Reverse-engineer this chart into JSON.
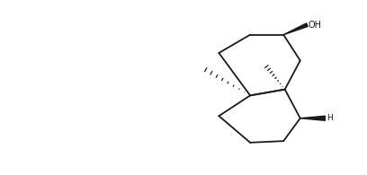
{
  "background": "#ffffff",
  "line_color": "#1a1a1a",
  "line_width": 1.2,
  "figsize": [
    4.08,
    1.95
  ],
  "dpi": 100
}
